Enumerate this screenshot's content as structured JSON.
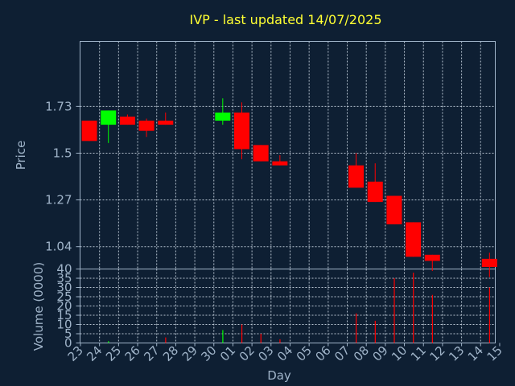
{
  "chart_data": {
    "type": "candlestick",
    "title": "IVP - last updated 14/07/2025",
    "xlabel": "Day",
    "price_ylabel": "Price",
    "volume_ylabel": "Volume (0000)",
    "grid": true,
    "colors": {
      "up": "#00ff00",
      "down": "#ff0000",
      "background": "#0e1f33",
      "text": "#9fb3c8",
      "title": "#ffff33"
    },
    "x_ticks": [
      "23",
      "24",
      "25",
      "26",
      "27",
      "28",
      "29",
      "30",
      "01",
      "02",
      "03",
      "04",
      "05",
      "06",
      "07",
      "08",
      "09",
      "10",
      "11",
      "12",
      "13",
      "14",
      "15"
    ],
    "price_ticks": [
      "1.73",
      "1.5",
      "1.27",
      "1.04"
    ],
    "price_tick_values": [
      1.73,
      1.5,
      1.27,
      1.04
    ],
    "price_ylim": [
      0.93,
      2.05
    ],
    "volume_ticks": [
      "40",
      "35",
      "30",
      "25",
      "20",
      "15",
      "10",
      "5",
      "0"
    ],
    "volume_tick_values": [
      40,
      35,
      30,
      25,
      20,
      15,
      10,
      5,
      0
    ],
    "volume_ylim": [
      0,
      40
    ],
    "candles": [
      {
        "x": "23",
        "open": 1.66,
        "high": 1.66,
        "low": 1.56,
        "close": 1.56,
        "volume": 0
      },
      {
        "x": "24",
        "open": 1.64,
        "high": 1.71,
        "low": 1.55,
        "close": 1.71,
        "volume": 1
      },
      {
        "x": "25",
        "open": 1.68,
        "high": 1.69,
        "low": 1.64,
        "close": 1.64,
        "volume": 0
      },
      {
        "x": "26",
        "open": 1.66,
        "high": 1.67,
        "low": 1.58,
        "close": 1.61,
        "volume": 0
      },
      {
        "x": "27",
        "open": 1.66,
        "high": 1.7,
        "low": 1.64,
        "close": 1.64,
        "volume": 3
      },
      {
        "x": "30",
        "open": 1.66,
        "high": 1.77,
        "low": 1.64,
        "close": 1.7,
        "volume": 7
      },
      {
        "x": "01",
        "open": 1.7,
        "high": 1.75,
        "low": 1.47,
        "close": 1.52,
        "volume": 10
      },
      {
        "x": "02",
        "open": 1.54,
        "high": 1.54,
        "low": 1.46,
        "close": 1.46,
        "volume": 5
      },
      {
        "x": "03",
        "open": 1.46,
        "high": 1.49,
        "low": 1.44,
        "close": 1.44,
        "volume": 2
      },
      {
        "x": "07",
        "open": 1.44,
        "high": 1.5,
        "low": 1.33,
        "close": 1.33,
        "volume": 16
      },
      {
        "x": "08",
        "open": 1.36,
        "high": 1.45,
        "low": 1.26,
        "close": 1.26,
        "volume": 12
      },
      {
        "x": "09",
        "open": 1.29,
        "high": 1.29,
        "low": 1.15,
        "close": 1.15,
        "volume": 35
      },
      {
        "x": "10",
        "open": 1.16,
        "high": 1.16,
        "low": 0.99,
        "close": 0.99,
        "volume": 38
      },
      {
        "x": "11",
        "open": 1.0,
        "high": 1.0,
        "low": 0.92,
        "close": 0.97,
        "volume": 26
      },
      {
        "x": "14",
        "open": 0.98,
        "high": 1.01,
        "low": 0.89,
        "close": 0.94,
        "volume": 30
      }
    ]
  }
}
